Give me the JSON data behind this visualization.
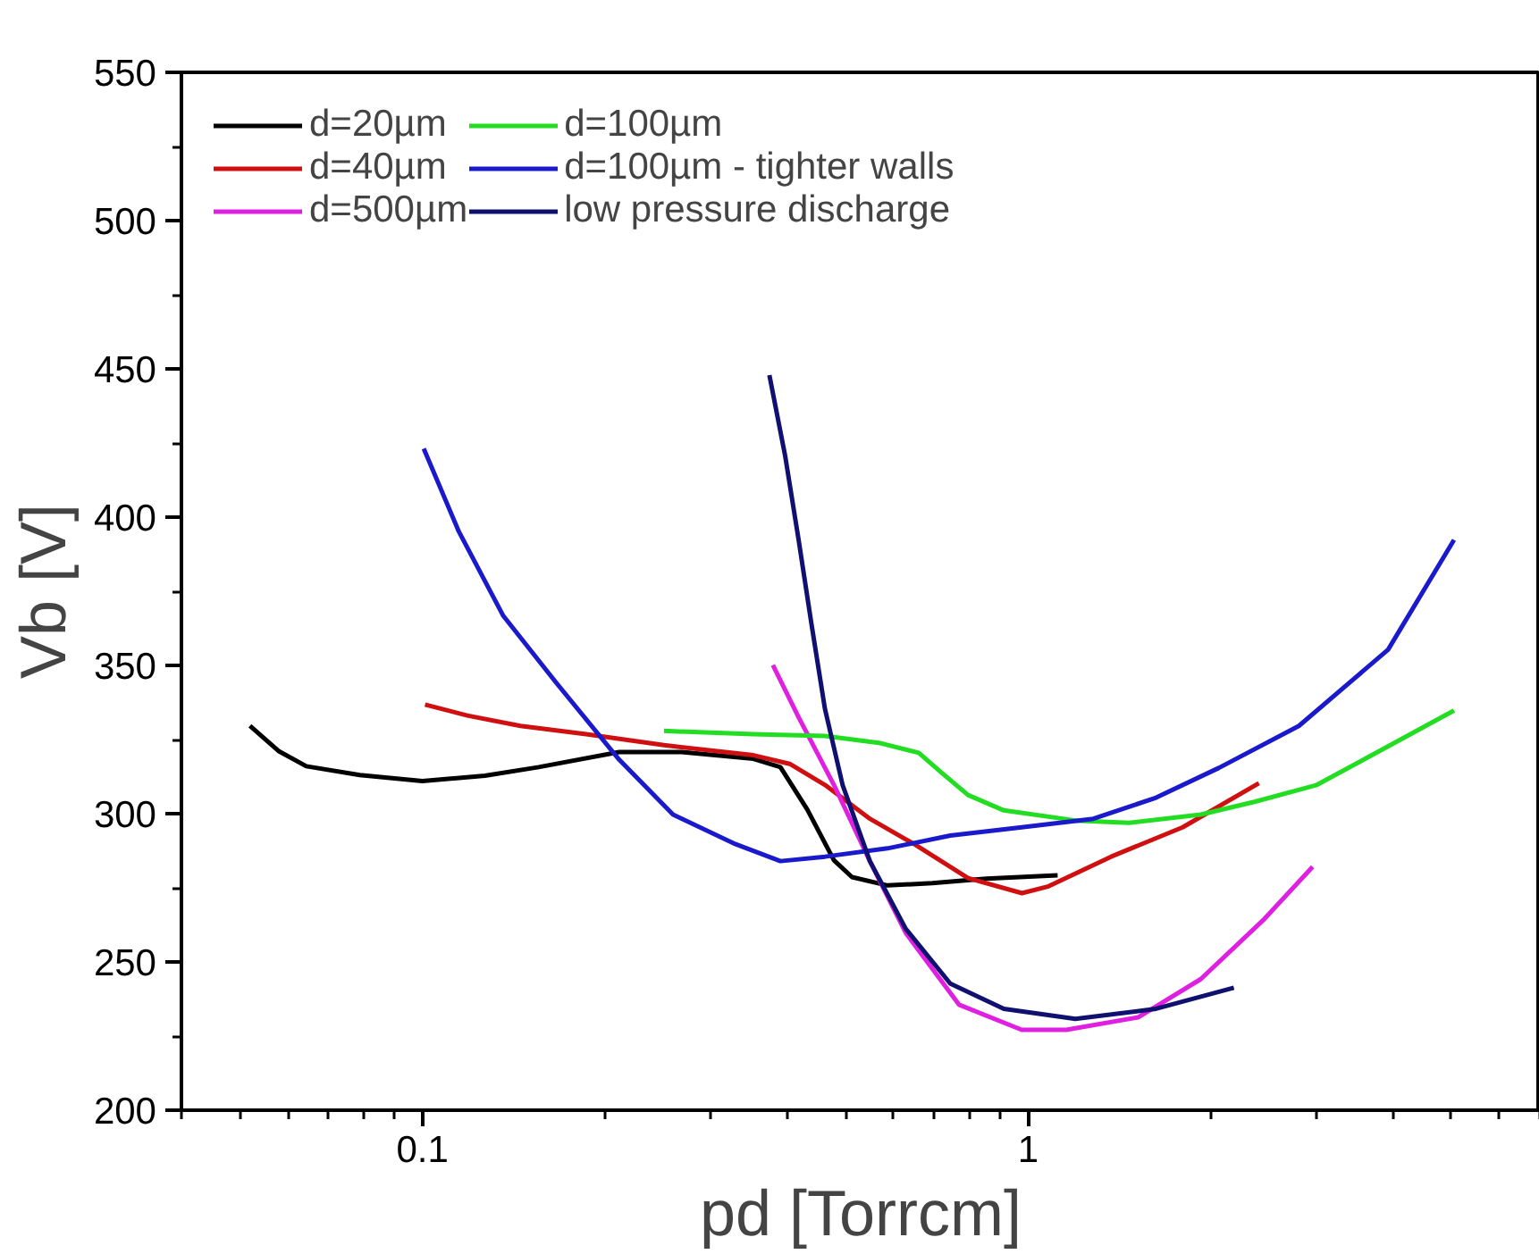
{
  "chart_data": {
    "type": "line",
    "xlabel": "pd [Torrcm]",
    "ylabel": "Vb [V]",
    "log": "x",
    "xlim": [
      0.04,
      7
    ],
    "xticks": [
      0.1,
      1
    ],
    "ylim": [
      200,
      550
    ],
    "yticks": [
      200,
      250,
      300,
      350,
      400,
      450,
      500,
      550
    ],
    "grid": false,
    "legend": "top left",
    "marker": "none",
    "line_style": "solid",
    "series": [
      {
        "name": "d=20µm",
        "color": "#000000",
        "x": [
          0.0519,
          0.058,
          0.0643,
          0.0788,
          0.1,
          0.1268,
          0.1556,
          0.2113,
          0.268,
          0.352,
          0.39,
          0.432,
          0.478,
          0.512,
          0.586,
          0.695,
          0.853,
          1.119
        ],
        "values": [
          329.6,
          321,
          316,
          313,
          311,
          312.8,
          315.7,
          320.8,
          320.8,
          318.5,
          315.7,
          301.4,
          284.3,
          278.6,
          275.8,
          276.6,
          278.1,
          279.2
        ]
      },
      {
        "name": "d=40µm",
        "color": "#d01010",
        "x": [
          0.101,
          0.1186,
          0.1452,
          0.1864,
          0.2505,
          0.352,
          0.404,
          0.462,
          0.548,
          0.649,
          0.796,
          0.977,
          1.081,
          1.371,
          1.8,
          2.405
        ],
        "values": [
          336.8,
          333.1,
          329.6,
          326.8,
          323.1,
          319.7,
          316.8,
          309.7,
          298.3,
          289.7,
          278.3,
          273.2,
          275.5,
          285.5,
          295.4,
          310.3
        ]
      },
      {
        "name": "d=500µm",
        "color": "#e020e0",
        "x": [
          0.379,
          0.418,
          0.478,
          0.548,
          0.628,
          0.769,
          0.976,
          1.157,
          1.519,
          1.928,
          2.445,
          2.95
        ],
        "values": [
          350.1,
          332.5,
          309.7,
          284,
          259.8,
          235.6,
          227.1,
          227.1,
          231.3,
          244.2,
          264.1,
          282.1
        ]
      },
      {
        "name": "d=100µm",
        "color": "#22dd22",
        "x": [
          0.2505,
          0.352,
          0.462,
          0.567,
          0.66,
          0.719,
          0.796,
          0.912,
          1.197,
          1.469,
          1.928,
          2.364,
          2.998,
          3.8,
          5.05
        ],
        "values": [
          327.9,
          326.8,
          326.2,
          323.9,
          320.5,
          313.9,
          306.3,
          301.1,
          297.7,
          296.9,
          299.7,
          304,
          309.7,
          321.1,
          334.8
        ]
      },
      {
        "name": "d=100µm - tighter walls",
        "color": "#1a1acc",
        "x": [
          0.1005,
          0.1148,
          0.136,
          0.1667,
          0.2113,
          0.2593,
          0.329,
          0.39,
          0.462,
          0.586,
          0.744,
          0.976,
          1.282,
          1.627,
          2.064,
          2.8,
          3.93,
          5.05
        ],
        "values": [
          423.1,
          395.2,
          366.7,
          343.9,
          318.2,
          299.7,
          289.7,
          284,
          285.5,
          288.3,
          292.6,
          295.4,
          298.3,
          305.4,
          315.4,
          329.6,
          355.3,
          392.3
        ]
      },
      {
        "name": "low pressure discharge",
        "color": "#101070",
        "x": [
          0.374,
          0.397,
          0.418,
          0.439,
          0.462,
          0.494,
          0.548,
          0.628,
          0.744,
          0.912,
          1.197,
          1.627,
          2.187
        ],
        "values": [
          447.9,
          420.8,
          392.3,
          363.8,
          335.3,
          309.7,
          284,
          261.2,
          242.7,
          234.2,
          230.8,
          234.2,
          241.3
        ]
      }
    ]
  }
}
